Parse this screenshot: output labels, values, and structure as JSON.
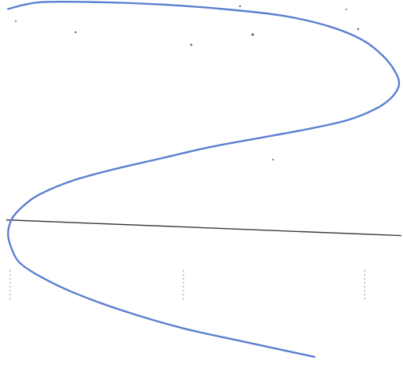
{
  "colors": {
    "background": "#ffffff",
    "curve": "#5b7fd0",
    "axis": "#3a3a3a",
    "tick": "#8a8a8a"
  },
  "chart_data": {
    "type": "line",
    "title": "",
    "xlabel": "",
    "ylabel": "",
    "grid": false,
    "legend": "none",
    "xlim": [
      0,
      1.0
    ],
    "ylim": [
      -0.65,
      1.0
    ],
    "series": [
      {
        "x": [
          0.78,
          0.6,
          0.45,
          0.3,
          0.18,
          0.1,
          0.05,
          0.03,
          0.02,
          0.03,
          0.06,
          0.1,
          0.18,
          0.28,
          0.4,
          0.52,
          0.64,
          0.76,
          0.86,
          0.93,
          0.97,
          0.99,
          0.98,
          0.95,
          0.9,
          0.82,
          0.7,
          0.55,
          0.4,
          0.25,
          0.1,
          0.02
        ],
        "y": [
          -0.6,
          -0.53,
          -0.47,
          -0.39,
          -0.31,
          -0.24,
          -0.18,
          -0.12,
          -0.05,
          0.02,
          0.08,
          0.13,
          0.19,
          0.24,
          0.29,
          0.34,
          0.38,
          0.42,
          0.46,
          0.51,
          0.56,
          0.62,
          0.68,
          0.75,
          0.82,
          0.88,
          0.93,
          0.96,
          0.98,
          0.99,
          0.99,
          0.96
        ]
      }
    ]
  }
}
